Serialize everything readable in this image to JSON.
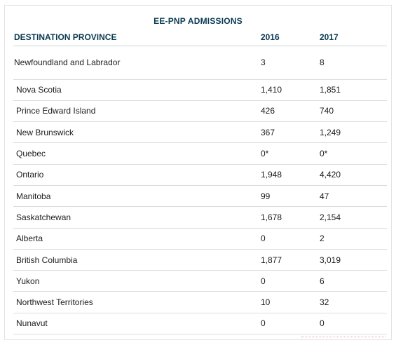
{
  "title": "EE-PNP ADMISSIONS",
  "headers": {
    "province": "DESTINATION PROVINCE",
    "y2016": "2016",
    "y2017": "2017"
  },
  "rows": [
    {
      "province": "Newfoundland and Labrador",
      "y2016": "3",
      "y2017": "8"
    },
    {
      "province": "Nova Scotia",
      "y2016": "1,410",
      "y2017": "1,851"
    },
    {
      "province": "Prince Edward Island",
      "y2016": "426",
      "y2017": "740"
    },
    {
      "province": "New Brunswick",
      "y2016": "367",
      "y2017": "1,249"
    },
    {
      "province": "Quebec",
      "y2016": "0*",
      "y2017": "0*"
    },
    {
      "province": "Ontario",
      "y2016": "1,948",
      "y2017": "4,420"
    },
    {
      "province": "Manitoba",
      "y2016": "99",
      "y2017": "47"
    },
    {
      "province": "Saskatchewan",
      "y2016": "1,678",
      "y2017": "2,154"
    },
    {
      "province": "Alberta",
      "y2016": "0",
      "y2017": "2"
    },
    {
      "province": "British Columbia",
      "y2016": "1,877",
      "y2017": "3,019"
    },
    {
      "province": "Yukon",
      "y2016": "0",
      "y2017": "6"
    },
    {
      "province": "Northwest Territories",
      "y2016": "10",
      "y2017": "32"
    },
    {
      "province": "Nunavut",
      "y2016": "0",
      "y2017": "0"
    }
  ],
  "colors": {
    "heading": "#0b3a52",
    "rule": "#d8dde0",
    "text": "#1d1d1d"
  }
}
